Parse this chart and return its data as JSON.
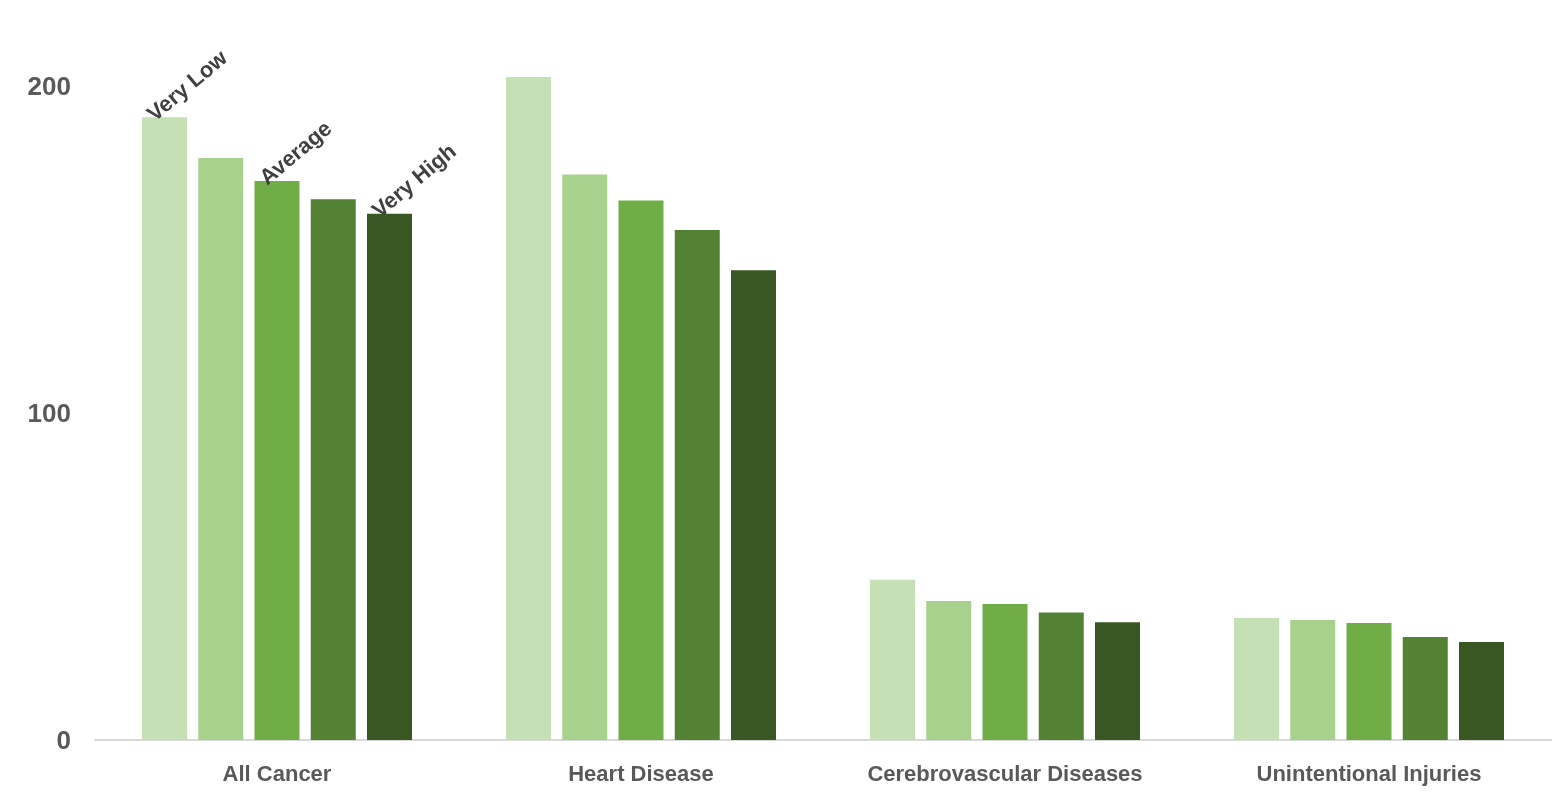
{
  "chart_data": {
    "type": "bar",
    "categories": [
      "All Cancer",
      "Heart Disease",
      "Cerebrovascular Diseases",
      "Unintentional Injuries"
    ],
    "series": [
      {
        "name": "Very Low",
        "color": "#c5e0b4",
        "values": [
          190.5,
          202.8,
          49,
          37.3
        ]
      },
      {
        "color": "#a9d18e",
        "values": [
          178,
          173,
          42.5,
          36.7
        ]
      },
      {
        "name": "Average",
        "color": "#70ad47",
        "values": [
          171,
          165,
          41.6,
          35.8
        ]
      },
      {
        "color": "#548235",
        "values": [
          165.4,
          156,
          39,
          31.5
        ]
      },
      {
        "name": "Very High",
        "color": "#385723",
        "values": [
          161,
          143.7,
          36,
          30
        ]
      }
    ],
    "ylim": [
      0,
      202.8
    ],
    "yticks": [
      0,
      100,
      200
    ],
    "grid": false,
    "legend": false
  }
}
